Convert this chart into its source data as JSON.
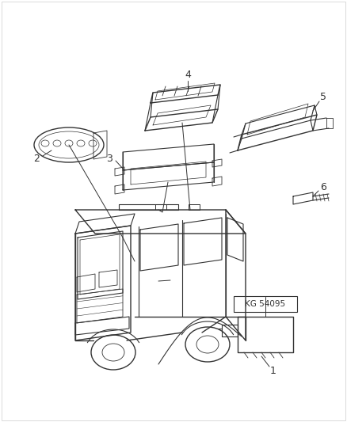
{
  "bg_color": "#ffffff",
  "fig_width": 4.38,
  "fig_height": 5.33,
  "dpi": 100,
  "line_color": "#333333",
  "label_fontsize": 9,
  "kg_label": "KG 54095",
  "kg_fontsize": 7.5
}
